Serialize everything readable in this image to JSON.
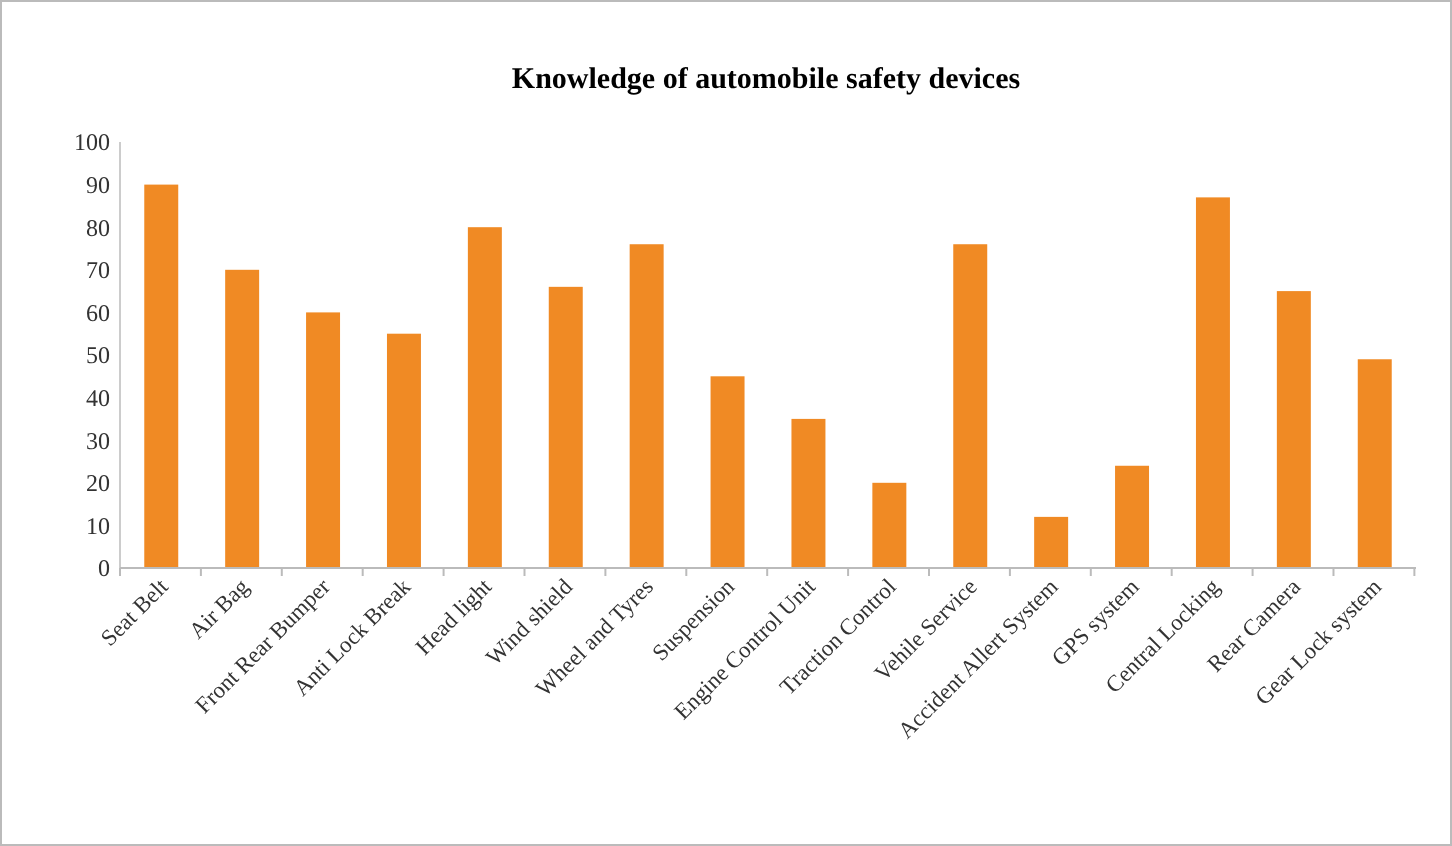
{
  "chart_data": {
    "type": "bar",
    "title": "Knowledge of automobile safety devices",
    "categories": [
      "Seat Belt",
      "Air Bag",
      "Front Rear Bumper",
      "Anti Lock Break",
      "Head light",
      "Wind shield",
      "Wheel and Tyres",
      "Suspension",
      "Engine Control Unit",
      "Traction Control",
      "Vehile Service",
      "Accident Allert System",
      "GPS  system",
      "Central Locking",
      "Rear Camera",
      "Gear Lock system"
    ],
    "values": [
      90,
      70,
      60,
      55,
      80,
      66,
      76,
      45,
      35,
      20,
      76,
      12,
      24,
      87,
      65,
      49
    ],
    "color": "#f08a24",
    "ylim": [
      0,
      100
    ],
    "yticks": [
      0,
      10,
      20,
      30,
      40,
      50,
      60,
      70,
      80,
      90,
      100
    ],
    "grid": false
  }
}
